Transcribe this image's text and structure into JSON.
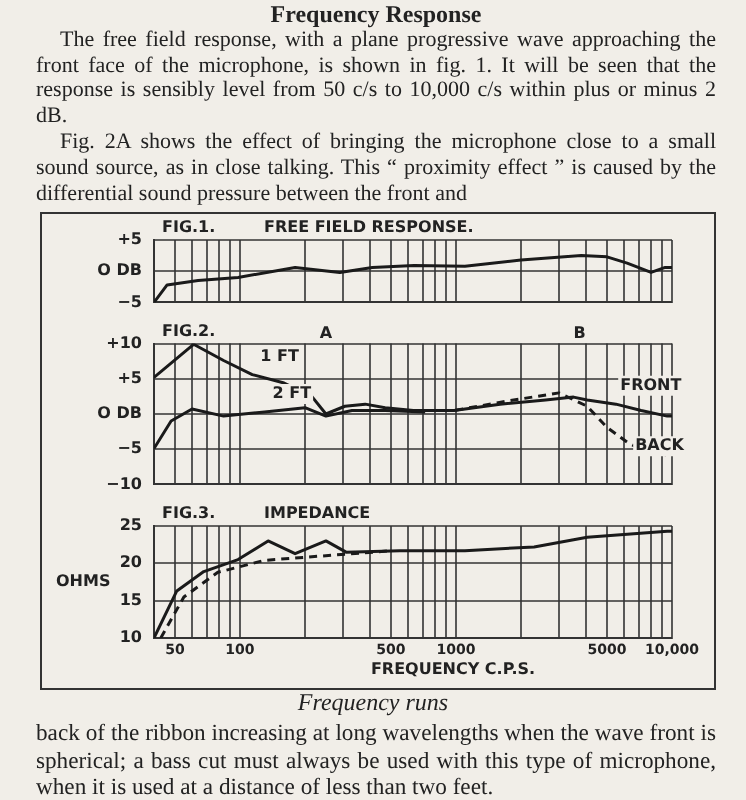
{
  "chart_data": [
    {
      "type": "line",
      "title": "FIG.1.",
      "subtitle": "FREE FIELD RESPONSE.",
      "log": "x",
      "grid": true,
      "legend": false,
      "tick_labels": "y",
      "annotations": [
        "Frequency Response",
        "The free field response, with a plane progressive wave approaching the front face of the microphone, is shown in fig. 1. It will be seen that the response is sensibly level from 50 c/s to 10,000 c/s within plus or minus 2 dB.",
        "Fig. 2A shows the effect of bringing the microphone close to a small sound source, as in close talking. This “ proximity effect ” is caused by the differential sound pressure between the front and"
      ],
      "xlim": [
        40,
        10000
      ],
      "xticks": [
        {
          "value": 40,
          "label": null
        },
        {
          "value": 50,
          "label": null
        },
        {
          "value": 60,
          "label": null
        },
        {
          "value": 70,
          "label": null
        },
        {
          "value": 80,
          "label": null
        },
        {
          "value": 90,
          "label": null
        },
        {
          "value": 100,
          "label": null
        },
        {
          "value": 200,
          "label": null
        },
        {
          "value": 300,
          "label": null
        },
        {
          "value": 400,
          "label": null
        },
        {
          "value": 500,
          "label": null
        },
        {
          "value": 600,
          "label": null
        },
        {
          "value": 700,
          "label": null
        },
        {
          "value": 800,
          "label": null
        },
        {
          "value": 900,
          "label": null
        },
        {
          "value": 1000,
          "label": null
        },
        {
          "value": 2000,
          "label": null
        },
        {
          "value": 3000,
          "label": null
        },
        {
          "value": 4000,
          "label": null
        },
        {
          "value": 5000,
          "label": null
        },
        {
          "value": 6000,
          "label": null
        },
        {
          "value": 7000,
          "label": null
        },
        {
          "value": 8000,
          "label": null
        },
        {
          "value": 9000,
          "label": null
        },
        {
          "value": 10000,
          "label": null
        }
      ],
      "ylim": [
        -5,
        5
      ],
      "yticks": [
        {
          "value": 5,
          "label": "+5"
        },
        {
          "value": 0,
          "label": "O DB"
        },
        {
          "value": -5,
          "label": "−5"
        }
      ],
      "series": [
        {
          "color": "#1a1a1a",
          "line_style": "solid",
          "x": [
            40,
            46,
            64,
            98,
            180,
            290,
            410,
            640,
            1100,
            2000,
            3800,
            5000,
            6200,
            8000,
            9300,
            10000
          ],
          "values": [
            -5,
            -2.2,
            -1.5,
            -1,
            0.6,
            -0.2,
            0.6,
            0.9,
            0.8,
            1.8,
            2.5,
            2.3,
            1.3,
            -0.2,
            0.6,
            0.6
          ]
        }
      ]
    },
    {
      "type": "line",
      "title": "FIG.2.",
      "log": "x",
      "grid": true,
      "legend": false,
      "tick_labels": "y",
      "annotations": [
        "A",
        "B",
        "FRONT"
      ],
      "xlim": [
        40,
        10000
      ],
      "xticks": [
        {
          "value": 40,
          "label": null
        },
        {
          "value": 50,
          "label": null
        },
        {
          "value": 60,
          "label": null
        },
        {
          "value": 70,
          "label": null
        },
        {
          "value": 80,
          "label": null
        },
        {
          "value": 90,
          "label": null
        },
        {
          "value": 100,
          "label": null
        },
        {
          "value": 200,
          "label": null
        },
        {
          "value": 300,
          "label": null
        },
        {
          "value": 400,
          "label": null
        },
        {
          "value": 500,
          "label": null
        },
        {
          "value": 600,
          "label": null
        },
        {
          "value": 700,
          "label": null
        },
        {
          "value": 800,
          "label": null
        },
        {
          "value": 900,
          "label": null
        },
        {
          "value": 1000,
          "label": null
        },
        {
          "value": 2000,
          "label": null
        },
        {
          "value": 3000,
          "label": null
        },
        {
          "value": 4000,
          "label": null
        },
        {
          "value": 5000,
          "label": null
        },
        {
          "value": 6000,
          "label": null
        },
        {
          "value": 7000,
          "label": null
        },
        {
          "value": 8000,
          "label": null
        },
        {
          "value": 9000,
          "label": null
        },
        {
          "value": 10000,
          "label": null
        }
      ],
      "ylim": [
        -10,
        10
      ],
      "yticks": [
        {
          "value": 10,
          "label": "+10"
        },
        {
          "value": 5,
          "label": "+5"
        },
        {
          "value": 0,
          "label": "O DB"
        },
        {
          "value": -5,
          "label": "−5"
        },
        {
          "value": -10,
          "label": "−10"
        }
      ],
      "series": [
        {
          "name": "1 FT",
          "color": "#1a1a1a",
          "line_style": "solid",
          "x": [
            40,
            61,
            84,
            114,
            160,
            215,
            250,
            306,
            380,
            470,
            635,
            980,
            1600,
            2600,
            3500,
            4050,
            5500,
            7200,
            9500,
            10000
          ],
          "values": [
            5.2,
            9.9,
            7.6,
            5.6,
            4.4,
            2.5,
            0,
            1.1,
            1.4,
            0.9,
            0.5,
            0.5,
            1.4,
            2,
            2.4,
            2,
            1.4,
            0.5,
            -0.3,
            -0.3
          ]
        },
        {
          "name": "2 FT",
          "color": "#1a1a1a",
          "line_style": "solid",
          "x": [
            40,
            48,
            60,
            84,
            130,
            200,
            250,
            330,
            470,
            720
          ],
          "values": [
            -4.9,
            -1,
            0.7,
            -0.3,
            0.3,
            0.9,
            -0.3,
            0.5,
            0.5,
            0.3
          ]
        },
        {
          "name": "BACK",
          "color": "#1a1a1a",
          "line_style": "dashed",
          "x": [
            635,
            980,
            1700,
            3000,
            4050,
            5000,
            6200,
            7700,
            9500,
            10000
          ],
          "values": [
            0.5,
            0.5,
            1.8,
            3,
            1.1,
            -1.9,
            -4,
            -5.5,
            -5.8,
            -5.6
          ]
        }
      ]
    },
    {
      "type": "line",
      "title": "FIG.3.",
      "subtitle": "IMPEDANCE",
      "ylabel": "OHMS",
      "xlabel": "FREQUENCY C.P.S.",
      "log": "x",
      "grid": true,
      "legend": false,
      "annotations": [
        "Frequency runs",
        "back of the ribbon increasing at long wavelengths when the wave front is spherical; a bass cut must always be used with this type of microphone, when it is used at a distance of less than two feet."
      ],
      "xlim": [
        40,
        10000
      ],
      "xticks": [
        {
          "value": 40,
          "label": null
        },
        {
          "value": 50,
          "label": "50"
        },
        {
          "value": 60,
          "label": null
        },
        {
          "value": 70,
          "label": null
        },
        {
          "value": 80,
          "label": null
        },
        {
          "value": 90,
          "label": null
        },
        {
          "value": 100,
          "label": "100"
        },
        {
          "value": 200,
          "label": null
        },
        {
          "value": 300,
          "label": null
        },
        {
          "value": 400,
          "label": null
        },
        {
          "value": 500,
          "label": "500"
        },
        {
          "value": 600,
          "label": null
        },
        {
          "value": 700,
          "label": null
        },
        {
          "value": 800,
          "label": null
        },
        {
          "value": 900,
          "label": null
        },
        {
          "value": 1000,
          "label": "1000"
        },
        {
          "value": 2000,
          "label": null
        },
        {
          "value": 3000,
          "label": null
        },
        {
          "value": 4000,
          "label": null
        },
        {
          "value": 5000,
          "label": "5000"
        },
        {
          "value": 6000,
          "label": null
        },
        {
          "value": 7000,
          "label": null
        },
        {
          "value": 8000,
          "label": null
        },
        {
          "value": 9000,
          "label": null
        },
        {
          "value": 10000,
          "label": "10,000"
        }
      ],
      "ylim": [
        10,
        25
      ],
      "yticks": [
        25,
        20,
        15,
        10
      ],
      "series": [
        {
          "color": "#1a1a1a",
          "line_style": "solid",
          "x": [
            40,
            51,
            68,
            98,
            135,
            180,
            250,
            310,
            550,
            1100,
            2300,
            4050,
            9500,
            10000
          ],
          "values": [
            10,
            16.3,
            18.9,
            20.5,
            23,
            21.3,
            23,
            21.5,
            21.7,
            21.7,
            22.2,
            23.5,
            24.3,
            24.3
          ]
        },
        {
          "color": "#1a1a1a",
          "line_style": "dashed",
          "x": [
            43,
            55,
            79,
            130,
            270,
            510
          ],
          "values": [
            10,
            15.5,
            18.8,
            20.4,
            21.1,
            21.7
          ]
        }
      ]
    }
  ]
}
